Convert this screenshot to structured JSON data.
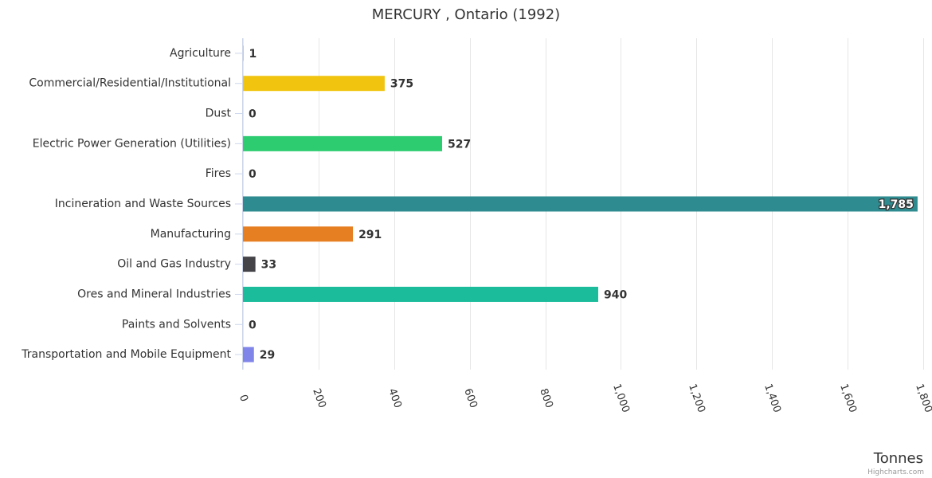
{
  "chart_data": {
    "type": "bar",
    "orientation": "horizontal",
    "title": "MERCURY , Ontario (1992)",
    "xlabel": "",
    "ylabel": "Tonnes",
    "xlim": [
      0,
      1800
    ],
    "tick_values": [
      0,
      200,
      400,
      600,
      800,
      1000,
      1200,
      1400,
      1600,
      1800
    ],
    "tick_labels": [
      "0",
      "200",
      "400",
      "600",
      "800",
      "1,000",
      "1,200",
      "1,400",
      "1,600",
      "1,800"
    ],
    "grid": true,
    "legend": "none",
    "categories": [
      "Agriculture",
      "Commercial/Residential/Institutional",
      "Dust",
      "Electric Power Generation (Utilities)",
      "Fires",
      "Incineration and Waste Sources",
      "Manufacturing",
      "Oil and Gas Industry",
      "Ores and Mineral Industries",
      "Paints and Solvents",
      "Transportation and Mobile Equipment"
    ],
    "values": [
      1,
      375,
      0,
      527,
      0,
      1785,
      291,
      33,
      940,
      0,
      29
    ],
    "value_labels": [
      "1",
      "375",
      "0",
      "527",
      "0",
      "1,785",
      "291",
      "33",
      "940",
      "0",
      "29"
    ],
    "colors": [
      "#7cb5ec",
      "#f1c40f",
      "#2c3e50",
      "#2ecc71",
      "#e74c3c",
      "#2e8b8f",
      "#e67e22",
      "#434348",
      "#1abc9c",
      "#9b59b6",
      "#8085e9"
    ]
  },
  "credits": "Highcharts.com"
}
